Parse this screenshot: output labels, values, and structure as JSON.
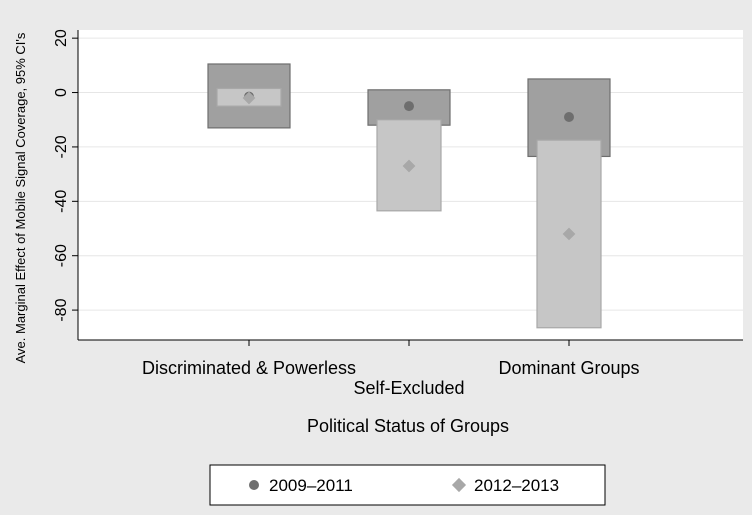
{
  "chart_data": {
    "type": "box",
    "title": "",
    "xlabel": "Political Status of Groups",
    "ylabel": "Ave. Marginal Effect of Mobile Signal Coverage, 95% CI's",
    "ylim": [
      -91,
      23
    ],
    "yticks": [
      20,
      0,
      -20,
      -40,
      -60,
      -80
    ],
    "ytick_labels": [
      "20",
      "0",
      "-20",
      "-40",
      "-60",
      "-80"
    ],
    "grid": true,
    "legend_position": "bottom",
    "categories": [
      "Discriminated & Powerless",
      "Self-Excluded",
      "Dominant Groups"
    ],
    "series": [
      {
        "name": "2009–2011",
        "marker": "circle",
        "color": "#6e6e6e",
        "fill": "#a0a0a0",
        "points": [
          {
            "category": "Discriminated & Powerless",
            "estimate": -1.5,
            "ci_low": -13,
            "ci_high": 10.5
          },
          {
            "category": "Self-Excluded",
            "estimate": -5,
            "ci_low": -12,
            "ci_high": 1
          },
          {
            "category": "Dominant Groups",
            "estimate": -9,
            "ci_low": -23.5,
            "ci_high": 5
          }
        ]
      },
      {
        "name": "2012–2013",
        "marker": "diamond",
        "color": "#a8a8a8",
        "fill": "#c6c6c6",
        "points": [
          {
            "category": "Discriminated & Powerless",
            "estimate": -2,
            "ci_low": -5,
            "ci_high": 1.5
          },
          {
            "category": "Self-Excluded",
            "estimate": -27,
            "ci_low": -43.5,
            "ci_high": -10
          },
          {
            "category": "Dominant Groups",
            "estimate": -52,
            "ci_low": -86.5,
            "ci_high": -17.5
          }
        ]
      }
    ]
  }
}
